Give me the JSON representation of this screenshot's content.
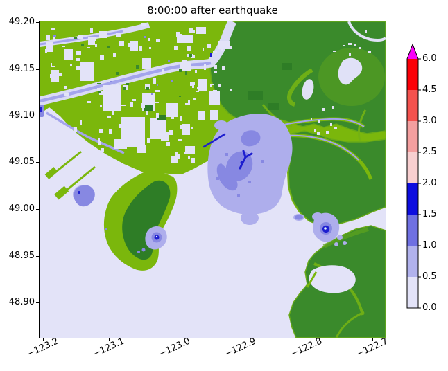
{
  "title": "8:00:00 after earthquake",
  "axes": {
    "x": {
      "tick_labels": [
        "−123.2",
        "−123.1",
        "−123.0",
        "−122.9",
        "−122.8",
        "−122.7"
      ]
    },
    "y": {
      "tick_labels": [
        "49.20",
        "49.15",
        "49.10",
        "49.05",
        "49.00",
        "48.95",
        "48.90"
      ]
    }
  },
  "colorbar": {
    "tick_labels": [
      "6.0",
      "4.5",
      "3.0",
      "2.5",
      "2.0",
      "1.5",
      "1.0",
      "0.5",
      "0.0"
    ],
    "segment_colors_top_to_bottom": [
      "#fb0007",
      "#f4524e",
      "#f49f9f",
      "#f8cfd0",
      "#0d0ddf",
      "#6f70e2",
      "#b1b2ed",
      "#e3e3f8"
    ],
    "over_color": "#f903f9"
  },
  "map_colors": {
    "water": "#e3e3f8",
    "lowland_green": "#7bb70c",
    "upland_dark_green": "#3a8a2b",
    "upland_light_green": "#74b214",
    "river_channel": "#a3a4ec",
    "wave_low": "#aeaeec",
    "wave_mid": "#8788e2",
    "wave_high": "#1d1ecf"
  },
  "chart_data": {
    "type": "heatmap",
    "title": "8:00:00 after earthquake",
    "description": "Simulated tsunami wave amplitude 8 hours after an earthquake, drawn over a coastal river-delta map; green shades are land topography, lavender-to-blue and pink-to-red shades are water surface elevation per the colorbar.",
    "x_axis": {
      "ticks": [
        -123.2,
        -123.1,
        -123.0,
        -122.9,
        -122.8,
        -122.7
      ],
      "range": [
        -123.205,
        -122.68
      ]
    },
    "y_axis": {
      "ticks": [
        49.2,
        49.15,
        49.1,
        49.05,
        49.0,
        48.95,
        48.9
      ],
      "range": [
        48.862,
        49.2
      ]
    },
    "colorbar": {
      "boundaries": [
        0.0,
        0.5,
        1.0,
        1.5,
        2.0,
        2.5,
        3.0,
        4.5,
        6.0
      ],
      "colors_low_to_high": [
        "#e3e3f8",
        "#b1b2ed",
        "#6f70e2",
        "#0d0ddf",
        "#f8cfd0",
        "#f49f9f",
        "#f4524e",
        "#fb0007"
      ],
      "over_color": "#f903f9",
      "extend": "max",
      "position": "right"
    },
    "grid": false,
    "notable_features": [
      "large 0.5-1.5 m wave patch in north-east corner of the central bay",
      "concentric 0.5-2.0 m wave spot on the eastern shore near 48.99N -122.79W",
      "small 0.5-2.0 m wave spot at peninsula tip near 48.98N -123.03W",
      "small wave spot at jetty terminal near 49.01N -123.16W"
    ]
  }
}
